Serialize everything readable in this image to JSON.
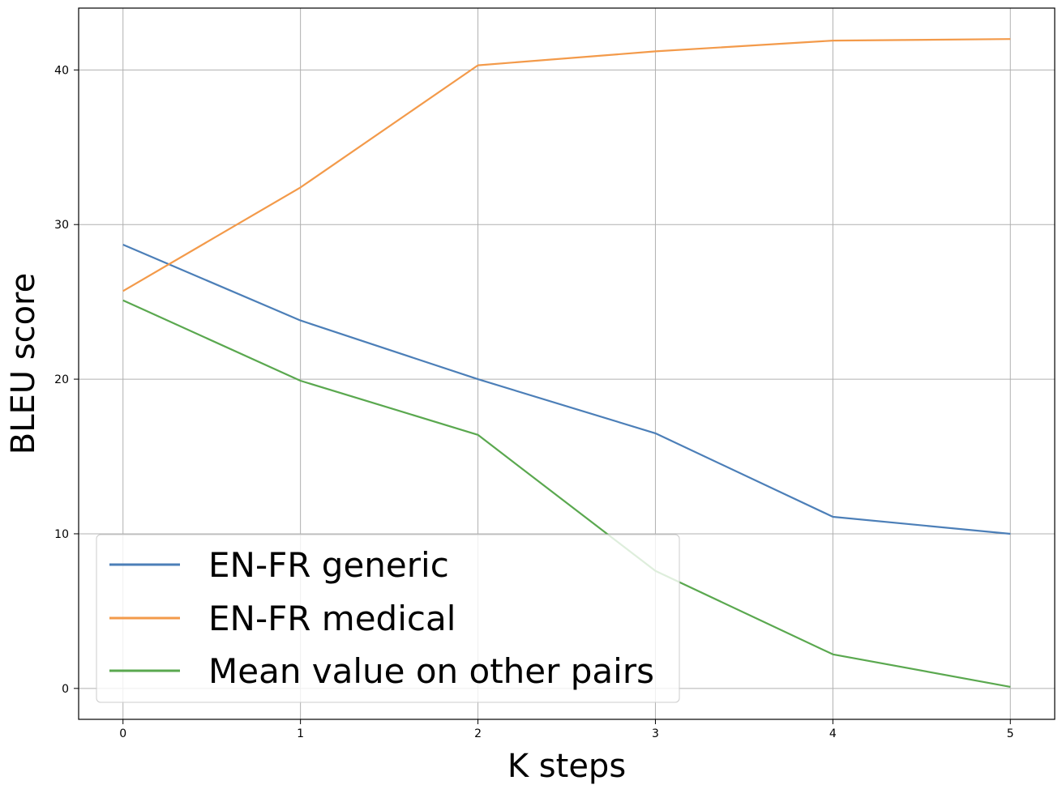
{
  "chart_data": {
    "type": "line",
    "xlabel": "K steps",
    "ylabel": "BLEU score",
    "x": [
      0,
      1,
      2,
      3,
      4,
      5
    ],
    "xticks": [
      "0",
      "1",
      "2",
      "3",
      "4",
      "5"
    ],
    "yticks": [
      "0",
      "10",
      "20",
      "30",
      "40"
    ],
    "xlim": [
      -0.25,
      5.25
    ],
    "ylim": [
      -2,
      44
    ],
    "grid": true,
    "legend_position": "lower-left",
    "series": [
      {
        "name": "EN-FR generic",
        "color": "#4c7fb8",
        "values": [
          28.7,
          23.8,
          20.0,
          16.5,
          11.1,
          10.0
        ]
      },
      {
        "name": "EN-FR medical",
        "color": "#f39a4a",
        "values": [
          25.7,
          32.4,
          40.3,
          41.2,
          41.9,
          42.0
        ]
      },
      {
        "name": "Mean value on other pairs",
        "color": "#5aa84f",
        "values": [
          25.1,
          19.9,
          16.4,
          7.6,
          2.2,
          0.1
        ]
      }
    ]
  }
}
